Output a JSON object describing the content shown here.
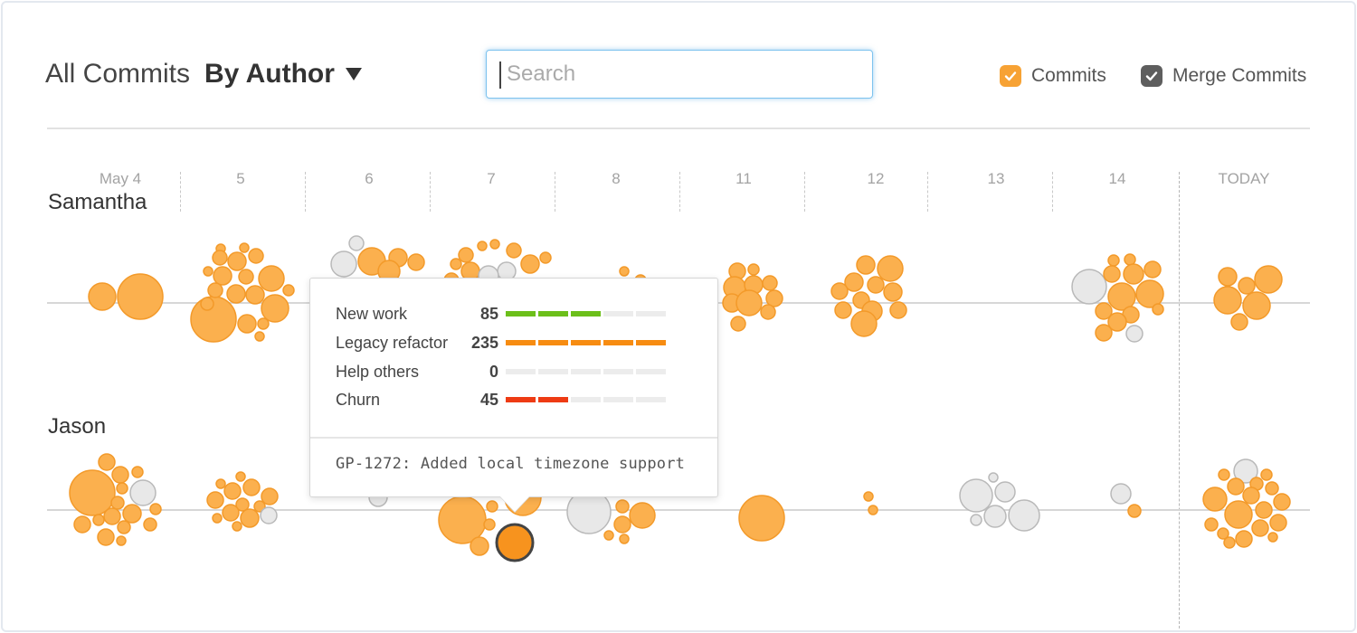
{
  "header": {
    "title": "All Commits",
    "group_by": "By Author",
    "search_placeholder": "Search",
    "legend": [
      {
        "label": "Commits",
        "checked": true,
        "color": "#f7a234"
      },
      {
        "label": "Merge Commits",
        "checked": true,
        "color": "#5e5e5e"
      }
    ]
  },
  "timeline": {
    "days": [
      "May 4",
      "5",
      "6",
      "7",
      "8",
      "11",
      "12",
      "13",
      "14",
      "TODAY"
    ]
  },
  "authors": [
    "Samantha",
    "Jason"
  ],
  "colors": {
    "commit": "#fbb04e",
    "commit_stroke": "#f39a2a",
    "merge": "#e8e8e8",
    "merge_stroke": "#b9b9b9",
    "selected": "#f7931e",
    "selected_stroke": "#444444",
    "green": "#6cbf1a",
    "orange": "#f78c11",
    "red": "#ee3b14",
    "empty": "#ececec"
  },
  "tooltip": {
    "rows": [
      {
        "label": "New work",
        "value": "85",
        "filled": 3,
        "color": "green"
      },
      {
        "label": "Legacy refactor",
        "value": "235",
        "filled": 5,
        "color": "orange"
      },
      {
        "label": "Help others",
        "value": "0",
        "filled": 0,
        "color": "orange"
      },
      {
        "label": "Churn",
        "value": "45",
        "filled": 2,
        "color": "red"
      }
    ],
    "message": "GP-1272: Added local timezone support"
  }
}
